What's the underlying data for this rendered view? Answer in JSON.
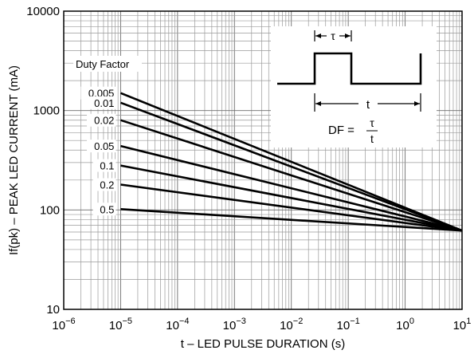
{
  "chart_data": {
    "type": "line",
    "xlabel": "t – LED PULSE DURATION (s)",
    "ylabel": "If(pk) – PEAK LED CURRENT (mA)",
    "x_scale": "log",
    "y_scale": "log",
    "xlim": [
      1e-06,
      10
    ],
    "ylim": [
      10,
      10000
    ],
    "grid": true,
    "x_ticks": [
      {
        "value": 1e-06,
        "base": "10",
        "exp": "−6"
      },
      {
        "value": 1e-05,
        "base": "10",
        "exp": "−5"
      },
      {
        "value": 0.0001,
        "base": "10",
        "exp": "−4"
      },
      {
        "value": 0.001,
        "base": "10",
        "exp": "−3"
      },
      {
        "value": 0.01,
        "base": "10",
        "exp": "−2"
      },
      {
        "value": 0.1,
        "base": "10",
        "exp": "−1"
      },
      {
        "value": 1,
        "base": "10",
        "exp": "0"
      },
      {
        "value": 10,
        "base": "10",
        "exp": "1"
      }
    ],
    "y_ticks": [
      {
        "value": 10,
        "label": "10"
      },
      {
        "value": 100,
        "label": "100"
      },
      {
        "value": 1000,
        "label": "1000"
      },
      {
        "value": 10000,
        "label": "10000"
      }
    ],
    "legend_title": "Duty Factor",
    "series": [
      {
        "name": "0.005",
        "x": [
          1e-05,
          10
        ],
        "y": [
          1500,
          62
        ]
      },
      {
        "name": "0.01",
        "x": [
          1e-05,
          10
        ],
        "y": [
          1200,
          62
        ]
      },
      {
        "name": "0.02",
        "x": [
          1e-05,
          10
        ],
        "y": [
          800,
          62
        ]
      },
      {
        "name": "0.05",
        "x": [
          1e-05,
          10
        ],
        "y": [
          440,
          62
        ]
      },
      {
        "name": "0.1",
        "x": [
          1e-05,
          10
        ],
        "y": [
          280,
          62
        ]
      },
      {
        "name": "0.2",
        "x": [
          1e-05,
          10
        ],
        "y": [
          180,
          62
        ]
      },
      {
        "name": "0.5",
        "x": [
          1e-05,
          10
        ],
        "y": [
          102,
          62
        ]
      }
    ],
    "inset": {
      "tau_label": "τ",
      "period_label": "t",
      "formula_lhs": "DF =",
      "formula_num": "τ",
      "formula_den": "t"
    }
  }
}
